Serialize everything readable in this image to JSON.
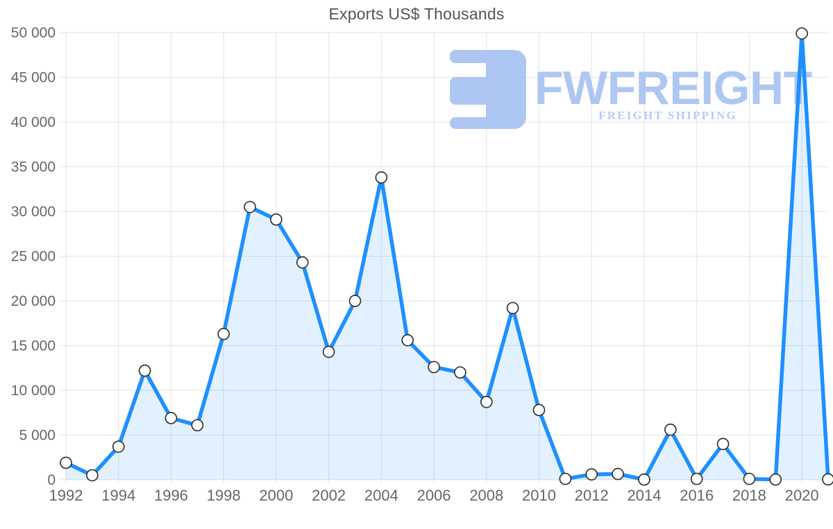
{
  "watermark": {
    "brand": "FWFREIGHT",
    "tagline": "FREIGHT SHIPPING",
    "logo_icon": "fwfreight-mark",
    "color": "#a6c1f1",
    "tagline_color": "#aec7f3"
  },
  "chart_data": {
    "type": "area",
    "title": "Exports US$ Thousands",
    "xlabel": "",
    "ylabel": "",
    "x": [
      1992,
      1993,
      1994,
      1995,
      1996,
      1997,
      1998,
      1999,
      2000,
      2001,
      2002,
      2003,
      2004,
      2005,
      2006,
      2007,
      2008,
      2009,
      2010,
      2011,
      2012,
      2013,
      2014,
      2015,
      2016,
      2017,
      2018,
      2019,
      2020,
      2021
    ],
    "series": [
      {
        "name": "Exports US$ Thousands",
        "values": [
          1900,
          500,
          3700,
          12200,
          6900,
          6100,
          16300,
          30500,
          29100,
          24300,
          14300,
          20000,
          33800,
          15600,
          12600,
          12000,
          8700,
          19200,
          7800,
          100,
          600,
          650,
          20,
          5600,
          100,
          4000,
          100,
          30,
          49900,
          50
        ]
      }
    ],
    "ylim": [
      0,
      50000
    ],
    "ytick_step": 5000,
    "yticks": [
      "0",
      "5 000",
      "10 000",
      "15 000",
      "20 000",
      "25 000",
      "30 000",
      "35 000",
      "40 000",
      "45 000",
      "50 000"
    ],
    "xticks": [
      1992,
      1994,
      1996,
      1998,
      2000,
      2002,
      2004,
      2006,
      2008,
      2010,
      2012,
      2014,
      2016,
      2018,
      2020
    ],
    "grid": true,
    "legend": "none",
    "line_color": "#1E90FF",
    "fill_color": "rgba(30,144,255,0.13)",
    "marker_fill": "#ffffff",
    "marker_stroke": "#333333",
    "grid_color": "#e3e3e3",
    "axis_text_color": "#666666",
    "title_color": "#545454"
  }
}
